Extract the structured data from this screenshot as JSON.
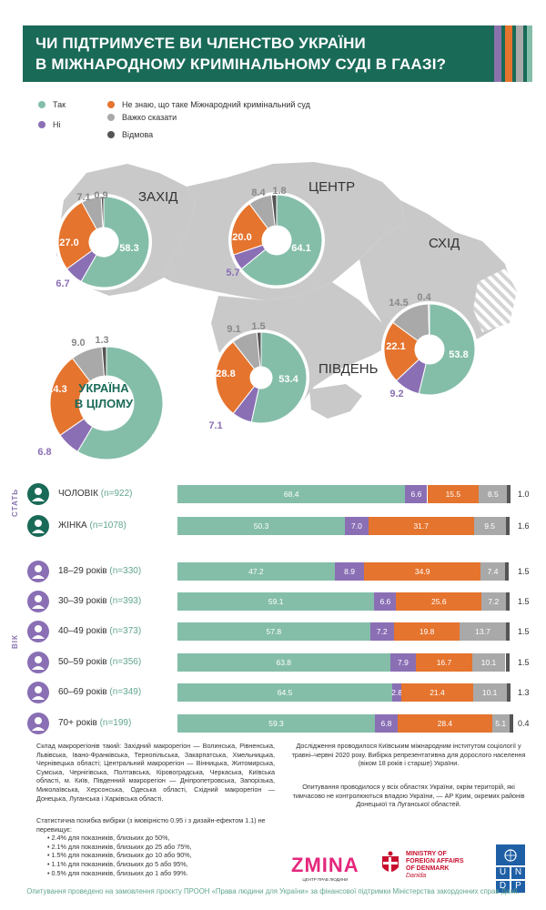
{
  "title": {
    "line1": "ЧИ ПІДТРИМУЄТЕ ВИ ЧЛЕНСТВО УКРАЇНИ",
    "line2": "В МІЖНАРОДНОМУ КРИМІНАЛЬНОМУ СУДІ В ГААЗІ?"
  },
  "colors": {
    "yes": "#84bea9",
    "no": "#8a6fb5",
    "dont_know": "#e5742e",
    "hard_to_say": "#a9a9a9",
    "refuse": "#555555",
    "banner": "#1a6a58",
    "map": "#c9c9c9"
  },
  "legend": [
    {
      "label": "Так",
      "key": "yes"
    },
    {
      "label": "Не знаю, що таке Міжнародний кримінальний суд",
      "key": "dont_know"
    },
    {
      "label": "Ні",
      "key": "no"
    },
    {
      "label": "Важко сказати",
      "key": "hard_to_say"
    },
    {
      "label": "Відмова",
      "key": "refuse"
    }
  ],
  "regions": {
    "west": "ЗАХІД",
    "center": "ЦЕНТР",
    "east": "СХІД",
    "south": "ПІВДЕНЬ",
    "total_line1": "УКРАЇНА",
    "total_line2": "В ЦІЛОМУ"
  },
  "chart_data": [
    {
      "type": "pie",
      "region": "ЗАХІД",
      "slices": [
        {
          "key": "yes",
          "value": 58.3
        },
        {
          "key": "no",
          "value": 6.7
        },
        {
          "key": "dont_know",
          "value": 27.0
        },
        {
          "key": "hard_to_say",
          "value": 7.1
        },
        {
          "key": "refuse",
          "value": 0.9
        }
      ]
    },
    {
      "type": "pie",
      "region": "ЦЕНТР",
      "slices": [
        {
          "key": "yes",
          "value": 64.1
        },
        {
          "key": "no",
          "value": 5.7
        },
        {
          "key": "dont_know",
          "value": 20.0
        },
        {
          "key": "hard_to_say",
          "value": 8.4
        },
        {
          "key": "refuse",
          "value": 1.8
        }
      ]
    },
    {
      "type": "pie",
      "region": "СХІД",
      "slices": [
        {
          "key": "yes",
          "value": 53.8
        },
        {
          "key": "no",
          "value": 9.2
        },
        {
          "key": "dont_know",
          "value": 22.1
        },
        {
          "key": "hard_to_say",
          "value": 14.5
        },
        {
          "key": "refuse",
          "value": 0.4
        }
      ]
    },
    {
      "type": "pie",
      "region": "ПІВДЕНЬ",
      "slices": [
        {
          "key": "yes",
          "value": 53.4
        },
        {
          "key": "no",
          "value": 7.1
        },
        {
          "key": "dont_know",
          "value": 28.8
        },
        {
          "key": "hard_to_say",
          "value": 9.1
        },
        {
          "key": "refuse",
          "value": 1.5
        }
      ]
    },
    {
      "type": "pie",
      "region": "УКРАЇНА В ЦІЛОМУ",
      "slices": [
        {
          "key": "yes",
          "value": 58.5
        },
        {
          "key": "no",
          "value": 6.8
        },
        {
          "key": "dont_know",
          "value": 24.3
        },
        {
          "key": "hard_to_say",
          "value": 9.0
        },
        {
          "key": "refuse",
          "value": 1.3
        }
      ]
    },
    {
      "type": "bar",
      "stacked": true,
      "orientation": "horizontal",
      "section_labels": {
        "gender": "СТАТЬ",
        "age": "ВІК"
      },
      "rows": [
        {
          "group": "gender",
          "label": "ЧОЛОВІК",
          "n": "(n=922)",
          "values": [
            68.4,
            6.6,
            15.5,
            8.5
          ],
          "refuse": "1.0"
        },
        {
          "group": "gender",
          "label": "ЖІНКА",
          "n": "(n=1078)",
          "values": [
            50.3,
            7.0,
            31.7,
            9.5
          ],
          "refuse": "1.6"
        },
        {
          "group": "age",
          "label": "18–29 років",
          "n": "(n=330)",
          "values": [
            47.2,
            8.9,
            34.9,
            7.4
          ],
          "refuse": "1.5"
        },
        {
          "group": "age",
          "label": "30–39 років",
          "n": "(n=393)",
          "values": [
            59.1,
            6.6,
            25.6,
            7.2
          ],
          "refuse": "1.5"
        },
        {
          "group": "age",
          "label": "40–49 років",
          "n": "(n=373)",
          "values": [
            57.8,
            7.2,
            19.8,
            13.7
          ],
          "refuse": "1.5"
        },
        {
          "group": "age",
          "label": "50–59 років",
          "n": "(n=356)",
          "values": [
            63.8,
            7.9,
            16.7,
            10.1
          ],
          "refuse": "1.5"
        },
        {
          "group": "age",
          "label": "60–69 років",
          "n": "(n=349)",
          "values": [
            64.5,
            2.8,
            21.4,
            10.1
          ],
          "refuse": "1.3"
        },
        {
          "group": "age",
          "label": "70+ років",
          "n": "(n=199)",
          "values": [
            59.3,
            6.8,
            28.4,
            5.1
          ],
          "refuse": "0.4"
        }
      ]
    }
  ],
  "footnotes": {
    "regions_text": "Склад макрорегіонів такий: Західний макрорегіон — Волинська, Рівненська, Львівська, Івано-Франківська, Тернопільська, Закарпатська, Хмельницька, Чернівецька області; Центральний макрорегіон — Вінницька, Житомирська, Сумська, Чернігівська, Полтавська, Кіровоградська, Черкаська, Київська області, м. Київ, Південний макрорегіон — Дніпропетровська, Запорізька, Миколаївська, Херсонська, Одеська області, Східний макрорегіон — Донецька, Луганська і Харківська області.",
    "survey_text": "Дослідження проводилося Київським міжнародним інститутом соціології у травні–червні 2020 року. Вибірка репрезентативна для дорослого населення (віком 18 років і старше) України.",
    "coverage_text": "Опитування проводилося у всіх областях України, окрім територій, які тимчасово не контролюються владою України, — АР Крим, окремих районів Донецької та Луганської областей.",
    "error_title": "Статистична похибка вибірки (з імовірністю 0.95 і з дизайн-ефектом 1.1) не перевищує:",
    "error_items": [
      "2.4% для показників, близьких до 50%,",
      "2.1% для показників, близьких до 25 або 75%,",
      "1.5% для показників, близьких до 10 або 90%,",
      "1.1% для показників, близьких до 5 або 95%,",
      "0.5% для показників, близьких до 1 або 99%."
    ],
    "bottom": "Опитування проведено на замовлення проєкту ПРООН «Права людини для України» за фінансової підтримки Міністерства закордонних справ Данії."
  },
  "logos": {
    "zmina": "ZMINA",
    "zmina_sub": "ЦЕНТР ПРАВ ЛЮДИНИ",
    "denmark_line1": "MINISTRY OF",
    "denmark_line2": "FOREIGN AFFAIRS",
    "denmark_line3": "OF DENMARK",
    "denmark_sub": "Danida",
    "undp_1": "U",
    "undp_2": "N",
    "undp_3": "D",
    "undp_4": "P"
  }
}
